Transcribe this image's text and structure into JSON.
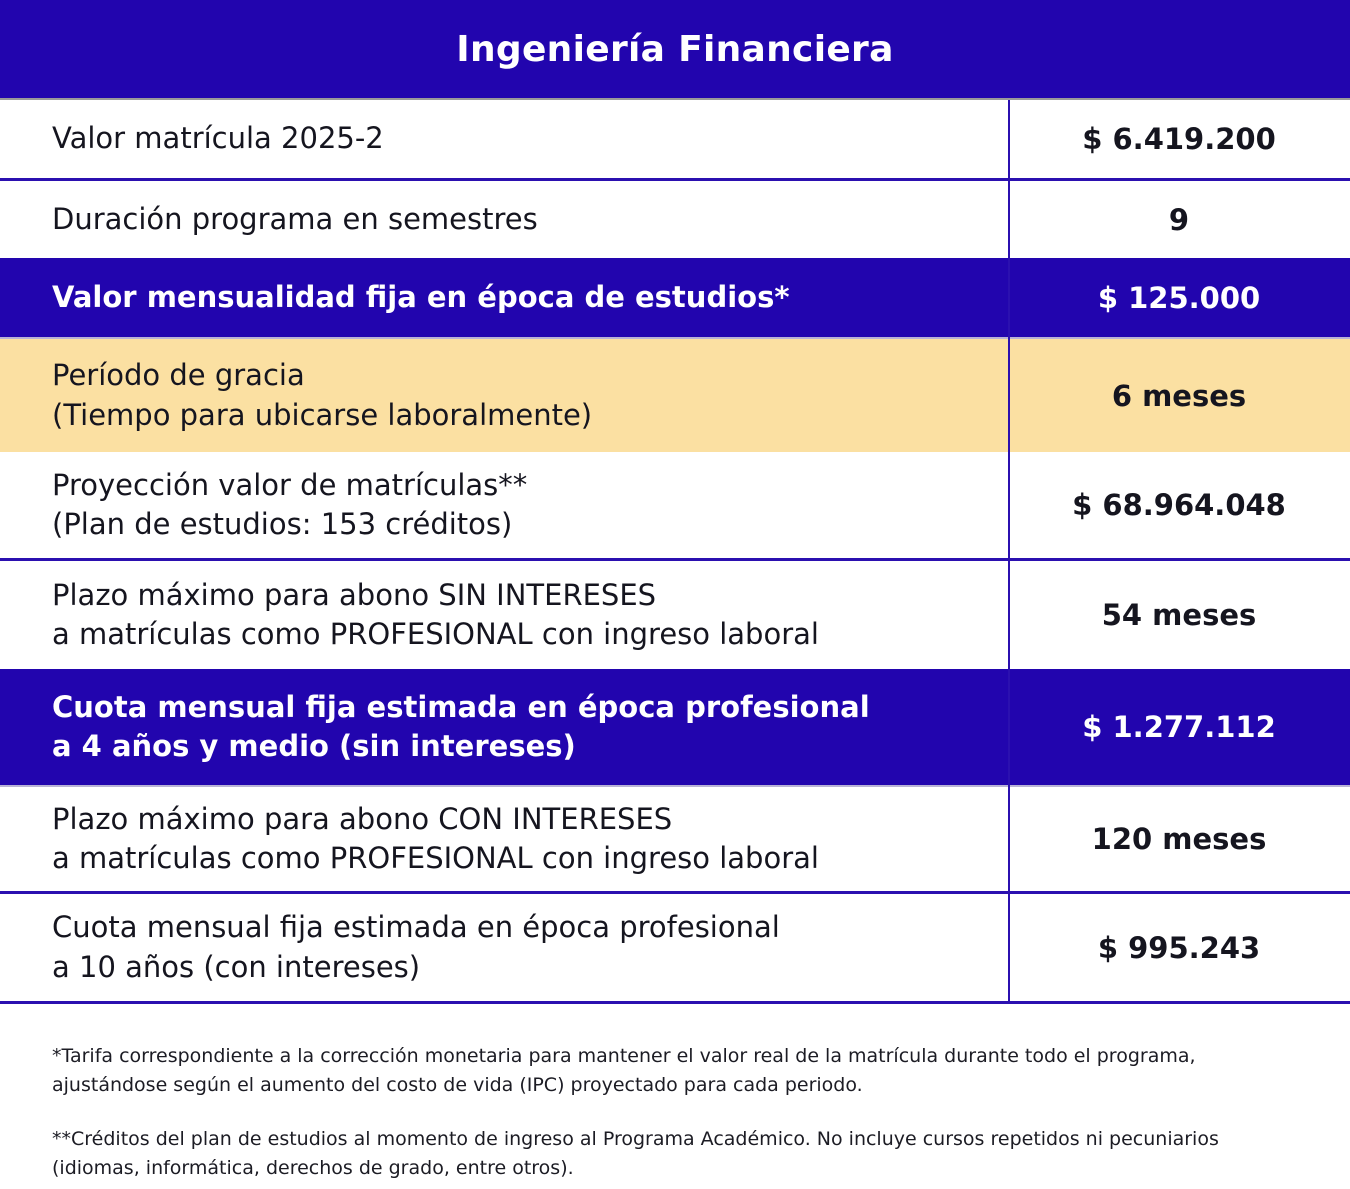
{
  "header": {
    "title": "Ingeniería Financiera"
  },
  "table": {
    "rows": [
      {
        "label": "Valor matrícula 2025-2",
        "value": "$ 6.419.200",
        "highlight": "none"
      },
      {
        "label": "Duración programa en semestres",
        "value": "9",
        "highlight": "none"
      },
      {
        "label": "Valor mensualidad fija en época de estudios*",
        "value": "$ 125.000",
        "highlight": "blue"
      },
      {
        "label": "Período de gracia\n(Tiempo para ubicarse laboralmente)",
        "value": "6 meses",
        "highlight": "peach"
      },
      {
        "label": "Proyección valor de matrículas**\n(Plan de estudios: 153 créditos)",
        "value": "$ 68.964.048",
        "highlight": "none"
      },
      {
        "label": "Plazo máximo para abono SIN INTERESES\na matrículas como PROFESIONAL con ingreso laboral",
        "value": "54 meses",
        "highlight": "none"
      },
      {
        "label": "Cuota mensual fija estimada en época profesional\na 4 años y medio (sin intereses)",
        "value": "$ 1.277.112",
        "highlight": "blue"
      },
      {
        "label": "Plazo máximo para abono CON INTERESES\na matrículas como PROFESIONAL con ingreso laboral",
        "value": "120 meses",
        "highlight": "none"
      },
      {
        "label": "Cuota mensual fija estimada en época profesional\na 10 años (con intereses)",
        "value": "$ 995.243",
        "highlight": "none"
      }
    ]
  },
  "footnotes": [
    "*Tarifa correspondiente a la corrección monetaria para mantener el valor real de la matrícula durante todo el programa,\najustándose según el aumento del costo de vida (IPC) proyectado para cada periodo.",
    "**Créditos del plan de estudios al momento de ingreso al Programa Académico. No incluye cursos repetidos ni pecuniarios\n(idiomas, informática, derechos de grado, entre otros)."
  ],
  "colors": {
    "brand_blue": "#2205AE",
    "highlight_peach": "#FBE0A2",
    "divider_blue": "#2B10B0",
    "header_edge_grey": "#9A9A9A",
    "text_dark": "#15151F",
    "text_on_blue": "#FFFFFF"
  }
}
